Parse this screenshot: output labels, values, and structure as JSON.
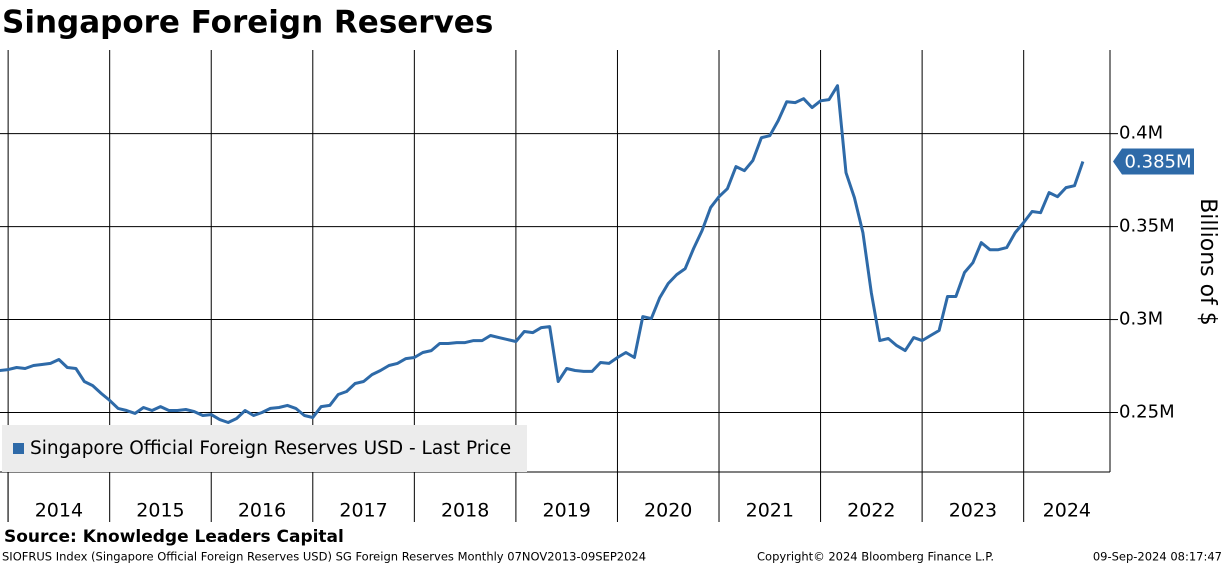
{
  "chart_data": {
    "type": "line",
    "title": "Singapore Foreign Reserves",
    "y_axis_label": "Billions of $",
    "source": "Source: Knowledge Leaders Capital",
    "footer_left": "SIOFRUS Index (Singapore Official Foreign Reserves USD) SG Foreign Reserves  Monthly 07NOV2013-09SEP2024",
    "footer_center": "Copyright© 2024 Bloomberg Finance L.P.",
    "footer_right": "09-Sep-2024 08:17:47",
    "last_price_label": "0.385M",
    "legend_position": "lower-left",
    "grid": true,
    "xlim": [
      2013.92,
      2024.85
    ],
    "xticks": [
      2014,
      2015,
      2016,
      2017,
      2018,
      2019,
      2020,
      2021,
      2022,
      2023,
      2024
    ],
    "ylim": [
      0.218,
      0.445
    ],
    "yticks": [
      {
        "value": 0.25,
        "label": "0.25M"
      },
      {
        "value": 0.3,
        "label": "0.3M"
      },
      {
        "value": 0.35,
        "label": "0.35M"
      },
      {
        "value": 0.4,
        "label": "0.4M"
      }
    ],
    "x": [
      2013.917,
      2014.0,
      2014.083,
      2014.167,
      2014.25,
      2014.333,
      2014.417,
      2014.5,
      2014.583,
      2014.667,
      2014.75,
      2014.833,
      2014.917,
      2015.0,
      2015.083,
      2015.167,
      2015.25,
      2015.333,
      2015.417,
      2015.5,
      2015.583,
      2015.667,
      2015.75,
      2015.833,
      2015.917,
      2016.0,
      2016.083,
      2016.167,
      2016.25,
      2016.333,
      2016.417,
      2016.5,
      2016.583,
      2016.667,
      2016.75,
      2016.833,
      2016.917,
      2017.0,
      2017.083,
      2017.167,
      2017.25,
      2017.333,
      2017.417,
      2017.5,
      2017.583,
      2017.667,
      2017.75,
      2017.833,
      2017.917,
      2018.0,
      2018.083,
      2018.167,
      2018.25,
      2018.333,
      2018.417,
      2018.5,
      2018.583,
      2018.667,
      2018.75,
      2018.833,
      2018.917,
      2019.0,
      2019.083,
      2019.167,
      2019.25,
      2019.333,
      2019.417,
      2019.5,
      2019.583,
      2019.667,
      2019.75,
      2019.833,
      2019.917,
      2020.0,
      2020.083,
      2020.167,
      2020.25,
      2020.333,
      2020.417,
      2020.5,
      2020.583,
      2020.667,
      2020.75,
      2020.833,
      2020.917,
      2021.0,
      2021.083,
      2021.167,
      2021.25,
      2021.333,
      2021.417,
      2021.5,
      2021.583,
      2021.667,
      2021.75,
      2021.833,
      2021.917,
      2022.0,
      2022.083,
      2022.167,
      2022.25,
      2022.333,
      2022.417,
      2022.5,
      2022.583,
      2022.667,
      2022.75,
      2022.833,
      2022.917,
      2023.0,
      2023.083,
      2023.167,
      2023.25,
      2023.333,
      2023.417,
      2023.5,
      2023.583,
      2023.667,
      2023.75,
      2023.833,
      2023.917,
      2024.0,
      2024.083,
      2024.167,
      2024.25,
      2024.333,
      2024.417,
      2024.5,
      2024.583
    ],
    "series": [
      {
        "name": "Singapore Official Foreign Reserves USD - Last Price",
        "color": "#2e6aa8",
        "values": [
          0.2726,
          0.2731,
          0.2742,
          0.2737,
          0.2753,
          0.2758,
          0.2764,
          0.2785,
          0.2742,
          0.2737,
          0.2667,
          0.2645,
          0.2602,
          0.2565,
          0.2522,
          0.2511,
          0.2495,
          0.2527,
          0.2511,
          0.2532,
          0.2511,
          0.2511,
          0.2516,
          0.2505,
          0.2484,
          0.2489,
          0.2462,
          0.2446,
          0.2468,
          0.2511,
          0.2484,
          0.25,
          0.2522,
          0.2527,
          0.2538,
          0.2522,
          0.2484,
          0.2473,
          0.2532,
          0.2538,
          0.2597,
          0.2613,
          0.2656,
          0.2667,
          0.2704,
          0.2726,
          0.2753,
          0.2764,
          0.279,
          0.2796,
          0.2823,
          0.2833,
          0.2871,
          0.2871,
          0.2876,
          0.2876,
          0.2887,
          0.2887,
          0.2914,
          0.2903,
          0.2892,
          0.2882,
          0.2936,
          0.293,
          0.2957,
          0.2962,
          0.2667,
          0.2737,
          0.2726,
          0.2721,
          0.2721,
          0.2769,
          0.2764,
          0.2796,
          0.2823,
          0.2796,
          0.3016,
          0.3005,
          0.3118,
          0.3194,
          0.3242,
          0.3274,
          0.3382,
          0.3479,
          0.3602,
          0.3661,
          0.3704,
          0.3823,
          0.3801,
          0.3855,
          0.3978,
          0.3989,
          0.407,
          0.4172,
          0.4167,
          0.4188,
          0.414,
          0.4177,
          0.4183,
          0.4258,
          0.379,
          0.3656,
          0.3468,
          0.3145,
          0.2887,
          0.2898,
          0.286,
          0.2833,
          0.2903,
          0.2887,
          0.2914,
          0.2941,
          0.3124,
          0.3124,
          0.3253,
          0.3306,
          0.3414,
          0.3376,
          0.3376,
          0.3387,
          0.3468,
          0.3522,
          0.3581,
          0.3575,
          0.3683,
          0.3661,
          0.371,
          0.372,
          0.385
        ]
      }
    ]
  }
}
